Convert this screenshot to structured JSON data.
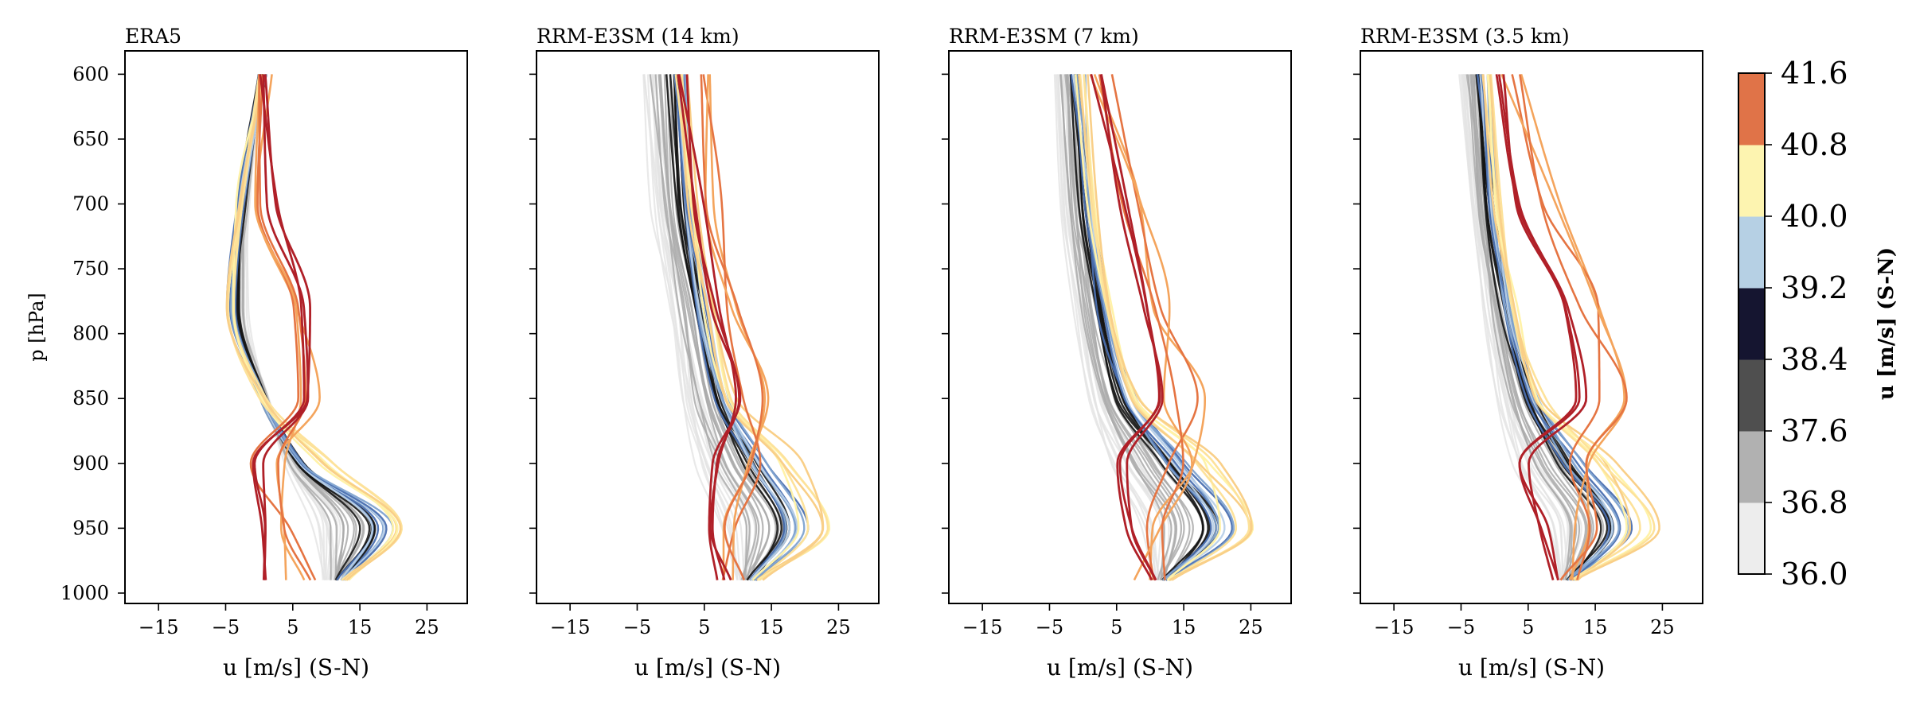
{
  "chart_data": [
    {
      "type": "line",
      "title": "ERA5",
      "xlabel": "u [m/s] (S-N)",
      "ylabel": "p [hPa]",
      "xlim": [
        -20,
        31
      ],
      "ylim": [
        1008,
        582
      ],
      "xticks": [
        -15,
        -5,
        5,
        15,
        25
      ],
      "yticks": [
        600,
        650,
        700,
        750,
        800,
        850,
        900,
        950,
        1000
      ],
      "show_yticklabels": true,
      "grid": false,
      "series_encoding": "profiles of u versus p, coloured by the colorbar value",
      "profiles": {
        "p_start": 600,
        "p_end": 990,
        "n_light": 12,
        "n_gray": 10,
        "n_dark": 6,
        "n_blue": 8,
        "n_yellow": 6,
        "n_orange": 4,
        "n_red": 3,
        "base_low": [
          0.5,
          -1.5,
          -2.0,
          1.0,
          4.0,
          8.0,
          10.0
        ],
        "base_high": [
          0.5,
          -3.0,
          -4.5,
          0.5,
          7.0,
          20.0,
          13.0
        ],
        "red_shape": [
          1.0,
          2.0,
          7.0,
          7.0,
          0.0,
          0.0,
          0.5
        ],
        "orange_shape": [
          0.0,
          0.0,
          4.0,
          6.0,
          2.0,
          4.0,
          5.0
        ]
      }
    },
    {
      "type": "line",
      "title": "RRM-E3SM (14 km)",
      "xlabel": "u [m/s] (S-N)",
      "ylabel": "",
      "xlim": [
        -20,
        31
      ],
      "ylim": [
        1008,
        582
      ],
      "xticks": [
        -15,
        -5,
        5,
        15,
        25
      ],
      "yticks": [
        600,
        650,
        700,
        750,
        800,
        850,
        900,
        950,
        1000
      ],
      "show_yticklabels": false,
      "grid": false,
      "profiles": {
        "p_start": 600,
        "p_end": 990,
        "n_light": 12,
        "n_gray": 10,
        "n_dark": 6,
        "n_blue": 8,
        "n_yellow": 6,
        "n_orange": 4,
        "n_red": 3,
        "base_low": [
          -4.0,
          -2.5,
          0.0,
          2.0,
          4.0,
          8.0,
          10.0
        ],
        "base_high": [
          2.0,
          3.5,
          6.0,
          9.0,
          15.0,
          21.0,
          13.0
        ],
        "red_shape": [
          2.0,
          4.0,
          7.0,
          10.0,
          6.0,
          6.0,
          8.0
        ],
        "orange_shape": [
          4.0,
          6.0,
          9.0,
          14.0,
          13.0,
          9.0,
          9.0
        ]
      }
    },
    {
      "type": "line",
      "title": "RRM-E3SM (7 km)",
      "xlabel": "u [m/s] (S-N)",
      "ylabel": "",
      "xlim": [
        -20,
        31
      ],
      "ylim": [
        1008,
        582
      ],
      "xticks": [
        -15,
        -5,
        5,
        15,
        25
      ],
      "yticks": [
        600,
        650,
        700,
        750,
        800,
        850,
        900,
        950,
        1000
      ],
      "show_yticklabels": false,
      "grid": false,
      "profiles": {
        "p_start": 600,
        "p_end": 990,
        "n_light": 12,
        "n_gray": 10,
        "n_dark": 6,
        "n_blue": 8,
        "n_yellow": 6,
        "n_orange": 4,
        "n_red": 3,
        "base_low": [
          -4.0,
          -3.0,
          -1.0,
          1.0,
          4.0,
          9.0,
          11.0
        ],
        "base_high": [
          0.0,
          1.5,
          4.0,
          8.0,
          16.0,
          23.0,
          13.0
        ],
        "red_shape": [
          2.0,
          6.0,
          10.0,
          11.0,
          6.0,
          7.0,
          10.0
        ],
        "orange_shape": [
          3.0,
          7.0,
          12.0,
          15.0,
          14.0,
          10.0,
          11.0
        ]
      }
    },
    {
      "type": "line",
      "title": "RRM-E3SM (3.5 km)",
      "xlabel": "u [m/s] (S-N)",
      "ylabel": "",
      "xlim": [
        -20,
        31
      ],
      "ylim": [
        1008,
        582
      ],
      "xticks": [
        -15,
        -5,
        5,
        15,
        25
      ],
      "yticks": [
        600,
        650,
        700,
        750,
        800,
        850,
        900,
        950,
        1000
      ],
      "show_yticklabels": false,
      "grid": false,
      "profiles": {
        "p_start": 600,
        "p_end": 990,
        "n_light": 12,
        "n_gray": 10,
        "n_dark": 6,
        "n_blue": 8,
        "n_yellow": 6,
        "n_orange": 4,
        "n_red": 3,
        "base_low": [
          -5.0,
          -3.5,
          -1.5,
          0.5,
          3.0,
          8.0,
          10.0
        ],
        "base_high": [
          -1.0,
          0.5,
          3.0,
          7.0,
          14.0,
          21.0,
          12.0
        ],
        "red_shape": [
          1.0,
          3.0,
          11.0,
          13.0,
          4.0,
          7.0,
          9.0
        ],
        "orange_shape": [
          3.0,
          8.0,
          14.0,
          18.0,
          14.0,
          12.0,
          11.0
        ]
      }
    }
  ],
  "colorbar": {
    "label": "u [m/s] (S-N)",
    "ticks": [
      "36.0",
      "36.8",
      "37.6",
      "38.4",
      "39.2",
      "40.0",
      "40.8",
      "41.6"
    ],
    "colors": [
      "#ededed",
      "#b1b1b1",
      "#4f4f4f",
      "#151530",
      "#b6d0e4",
      "#fdf4b0",
      "#e07348"
    ]
  },
  "colors": {
    "light": "#e4e4e4",
    "gray": "#aaaaaa",
    "dark": "#141414",
    "blue": [
      "#4a6fb0",
      "#7fa3d0",
      "#b8d0e8"
    ],
    "yellow": [
      "#fff2a8",
      "#fde29a",
      "#f9cf88"
    ],
    "orange": [
      "#f4a45c",
      "#e57442"
    ],
    "red": "#b02028"
  }
}
